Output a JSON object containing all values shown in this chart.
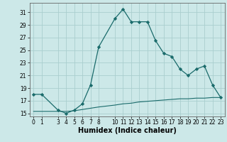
{
  "xlabel": "Humidex (Indice chaleur)",
  "background_color": "#cce8e8",
  "grid_color": "#aacece",
  "line_color": "#1a6b6b",
  "marker_color": "#1a6b6b",
  "x_line1": [
    0,
    1,
    3,
    4,
    5,
    6,
    7,
    8,
    10,
    11,
    12,
    13,
    14,
    15,
    16,
    17,
    18,
    19,
    20,
    21,
    22,
    23
  ],
  "y_line1": [
    18,
    18,
    15.5,
    15,
    15.5,
    16.5,
    19.5,
    25.5,
    30,
    31.5,
    29.5,
    29.5,
    29.5,
    26.5,
    24.5,
    24,
    22,
    21,
    22,
    22.5,
    19.5,
    17.5
  ],
  "x_line2": [
    0,
    1,
    3,
    4,
    5,
    6,
    7,
    8,
    10,
    11,
    12,
    13,
    14,
    15,
    16,
    17,
    18,
    19,
    20,
    21,
    22,
    23
  ],
  "y_line2": [
    15.3,
    15.3,
    15.3,
    15.3,
    15.4,
    15.6,
    15.8,
    16.0,
    16.3,
    16.5,
    16.6,
    16.8,
    16.9,
    17.0,
    17.1,
    17.2,
    17.3,
    17.3,
    17.4,
    17.4,
    17.5,
    17.5
  ],
  "xlim": [
    -0.5,
    23.5
  ],
  "ylim": [
    14.5,
    32.5
  ],
  "yticks": [
    15,
    17,
    19,
    21,
    23,
    25,
    27,
    29,
    31
  ],
  "xticks": [
    0,
    1,
    3,
    4,
    5,
    6,
    7,
    8,
    10,
    11,
    12,
    13,
    14,
    15,
    16,
    17,
    18,
    19,
    20,
    21,
    22,
    23
  ],
  "tick_fontsize": 5.5,
  "label_fontsize": 7.0
}
